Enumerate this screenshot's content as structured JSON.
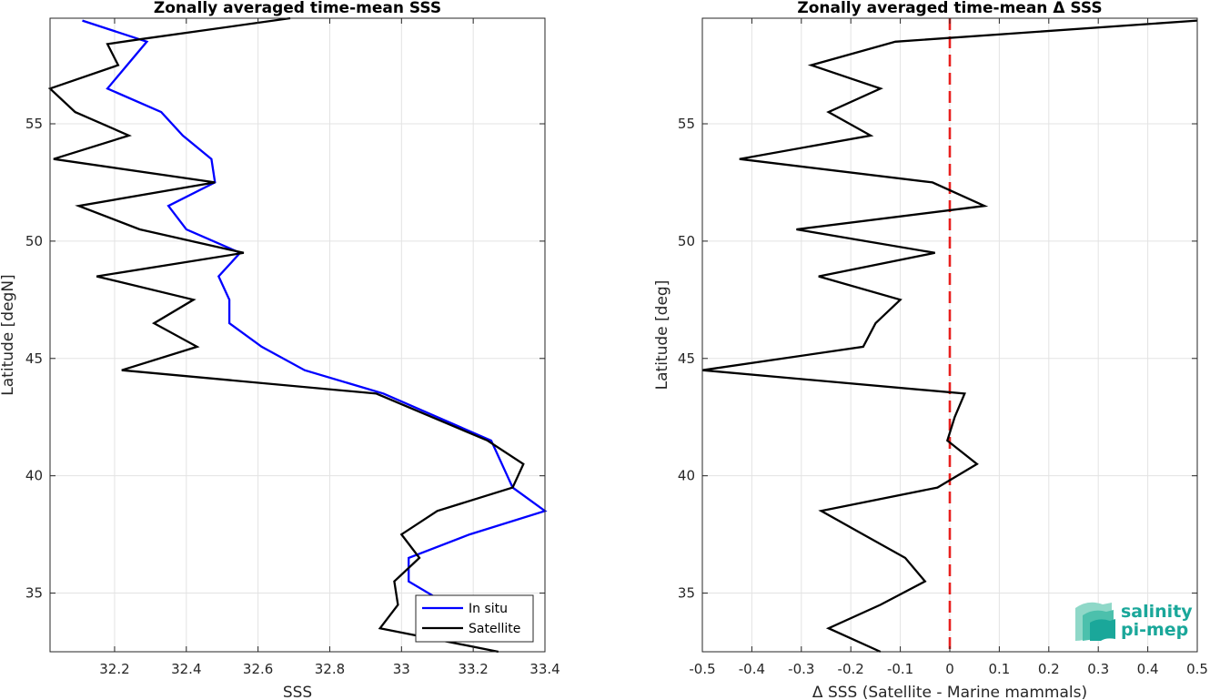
{
  "chart_data": [
    {
      "type": "line",
      "title": "Zonally averaged time-mean SSS",
      "xlabel": "SSS",
      "ylabel": "Latitude [degN]",
      "xlim": [
        32.02,
        33.4
      ],
      "ylim": [
        32.5,
        59.5
      ],
      "xticks": [
        32.2,
        32.4,
        32.6,
        32.8,
        33,
        33.2,
        33.4
      ],
      "xtick_labels": [
        "32.2",
        "32.4",
        "32.6",
        "32.8",
        "33",
        "33.2",
        "33.4"
      ],
      "yticks": [
        35,
        40,
        45,
        50,
        55
      ],
      "ytick_labels": [
        "35",
        "40",
        "45",
        "50",
        "55"
      ],
      "grid": true,
      "legend_position": "bottom-right",
      "series": [
        {
          "name": "In situ",
          "color": "#0000ff",
          "x": [
            32.11,
            32.29,
            32.18,
            32.33,
            32.39,
            32.47,
            32.48,
            32.35,
            32.4,
            32.55,
            32.49,
            32.52,
            32.52,
            32.61,
            32.73,
            32.95,
            33.1,
            33.25,
            33.28,
            33.31,
            33.4,
            33.19,
            33.02,
            33.02,
            33.13,
            33.2
          ],
          "y": [
            59.4,
            58.5,
            56.5,
            55.5,
            54.5,
            53.5,
            52.5,
            51.5,
            50.5,
            49.5,
            48.5,
            47.5,
            46.5,
            45.5,
            44.5,
            43.5,
            42.5,
            41.5,
            40.5,
            39.5,
            38.5,
            37.5,
            36.5,
            35.5,
            34.5,
            33.5
          ]
        },
        {
          "name": "Satellite",
          "color": "#000000",
          "x": [
            32.69,
            32.27,
            32.18,
            32.21,
            32.02,
            32.09,
            32.24,
            32.03,
            32.48,
            32.1,
            32.27,
            32.56,
            32.15,
            32.42,
            32.31,
            32.43,
            32.22,
            32.93,
            33.24,
            33.34,
            33.31,
            33.1,
            33.0,
            33.05,
            32.98,
            32.99,
            32.94,
            33.27
          ],
          "y": [
            59.5,
            58.6,
            58.4,
            57.5,
            56.5,
            55.5,
            54.5,
            53.5,
            52.5,
            51.5,
            50.5,
            49.5,
            48.5,
            47.5,
            46.5,
            45.5,
            44.5,
            43.5,
            41.5,
            40.5,
            39.5,
            38.5,
            37.5,
            36.5,
            35.5,
            34.5,
            33.5,
            32.5
          ]
        }
      ]
    },
    {
      "type": "line",
      "title": "Zonally averaged time-mean Δ SSS",
      "xlabel": "Δ SSS (Satellite - Marine mammals)",
      "ylabel": "Latitude [deg]",
      "xlim": [
        -0.5,
        0.5
      ],
      "ylim": [
        32.5,
        59.5
      ],
      "xticks": [
        -0.5,
        -0.4,
        -0.3,
        -0.2,
        -0.1,
        0,
        0.1,
        0.2,
        0.3,
        0.4,
        0.5
      ],
      "xtick_labels": [
        "-0.5",
        "-0.4",
        "-0.3",
        "-0.2",
        "-0.1",
        "0",
        "0.1",
        "0.2",
        "0.3",
        "0.4",
        "0.5"
      ],
      "yticks": [
        35,
        40,
        45,
        50,
        55
      ],
      "ytick_labels": [
        "35",
        "40",
        "45",
        "50",
        "55"
      ],
      "grid": true,
      "series": [
        {
          "color": "#000000",
          "x": [
            0.5,
            -0.11,
            -0.28,
            -0.14,
            -0.245,
            -0.16,
            -0.425,
            -0.035,
            0.07,
            -0.31,
            -0.03,
            -0.265,
            -0.1,
            -0.15,
            -0.175,
            -0.5,
            0.03,
            0.01,
            -0.005,
            0.055,
            -0.025,
            -0.26,
            -0.175,
            -0.09,
            -0.05,
            -0.14,
            -0.245,
            -0.14
          ],
          "y": [
            59.4,
            58.5,
            57.5,
            56.5,
            55.5,
            54.5,
            53.5,
            52.5,
            51.5,
            50.5,
            49.5,
            48.5,
            47.5,
            46.5,
            45.5,
            44.5,
            43.5,
            42.5,
            41.5,
            40.5,
            39.5,
            38.5,
            37.5,
            36.5,
            35.5,
            34.5,
            33.5,
            32.5
          ]
        }
      ],
      "reference_line": {
        "x": 0,
        "color": "#e8201e",
        "style": "dashed"
      }
    }
  ],
  "logo": {
    "line1": "salinity",
    "line2": "pi-mep",
    "color": "#1aa79a"
  }
}
